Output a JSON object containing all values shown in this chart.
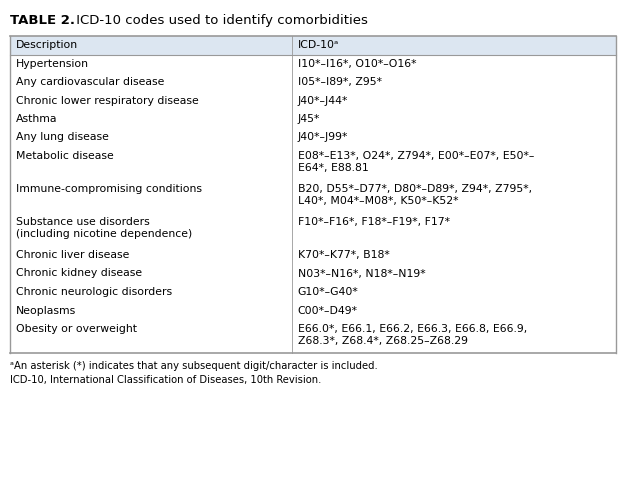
{
  "title_bold": "TABLE 2.",
  "title_normal": " ICD-10 codes used to identify comorbidities",
  "header": [
    "Description",
    "ICD-10ᵃ"
  ],
  "header_bg": "#dce6f1",
  "rows": [
    [
      "Hypertension",
      "I10*–I16*, O10*–O16*"
    ],
    [
      "Any cardiovascular disease",
      "I05*–I89*, Z95*"
    ],
    [
      "Chronic lower respiratory disease",
      "J40*–J44*"
    ],
    [
      "Asthma",
      "J45*"
    ],
    [
      "Any lung disease",
      "J40*–J99*"
    ],
    [
      "Metabolic disease",
      "E08*–E13*, O24*, Z794*, E00*–E07*, E50*–\nE64*, E88.81"
    ],
    [
      "Immune-compromising conditions",
      "B20, D55*–D77*, D80*–D89*, Z94*, Z795*,\nL40*, M04*–M08*, K50*–K52*"
    ],
    [
      "Substance use disorders\n(including nicotine dependence)",
      "F10*–F16*, F18*–F19*, F17*"
    ],
    [
      "Chronic liver disease",
      "K70*–K77*, B18*"
    ],
    [
      "Chronic kidney disease",
      "N03*–N16*, N18*–N19*"
    ],
    [
      "Chronic neurologic disorders",
      "G10*–G40*"
    ],
    [
      "Neoplasms",
      "C00*–D49*"
    ],
    [
      "Obesity or overweight",
      "E66.0*, E66.1, E66.2, E66.3, E66.8, E66.9,\nZ68.3*, Z68.4*, Z68.25–Z68.29"
    ]
  ],
  "footnotes": [
    "ᵃAn asterisk (*) indicates that any subsequent digit/character is included.",
    "ICD-10, International Classification of Diseases, 10th Revision."
  ],
  "col_split": 0.465,
  "bg_color": "#ffffff",
  "border_color": "#999999",
  "text_color": "#000000",
  "font_size": 7.8,
  "title_font_size": 9.5,
  "footnote_font_size": 7.2
}
